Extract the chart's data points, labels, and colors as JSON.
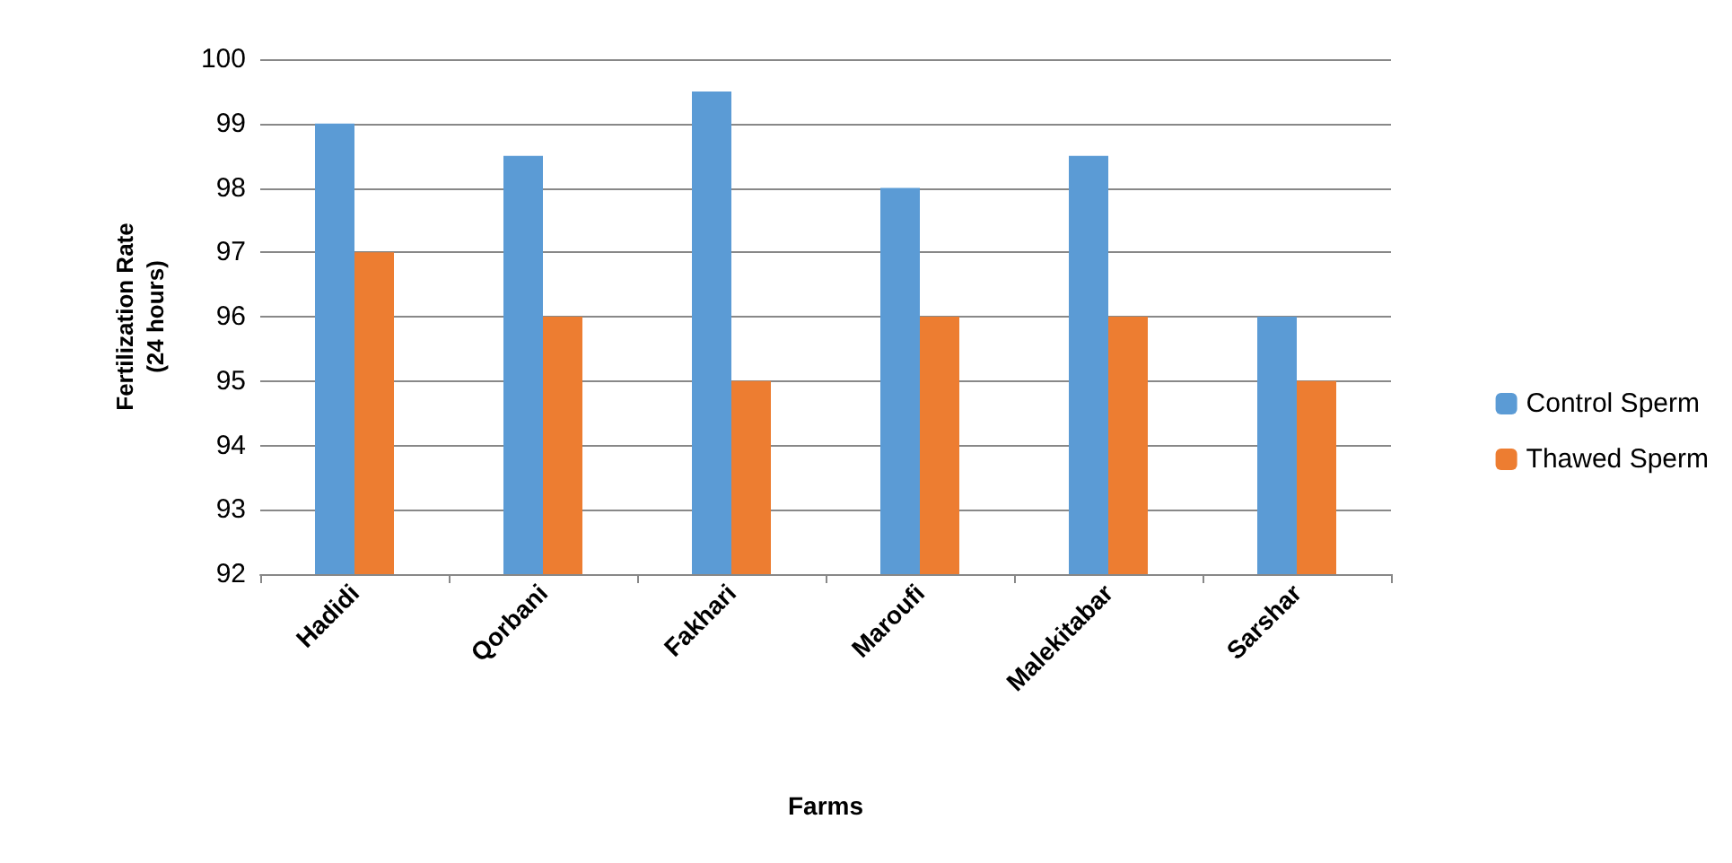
{
  "chart_data": {
    "type": "bar",
    "xlabel": "Farms",
    "ylabel": "Fertilization Rate\n(24 hours)",
    "categories": [
      "Hadidi",
      "Qorbani",
      "Fakhari",
      "Maroufi",
      "Malekitabar",
      "Sarshar"
    ],
    "series": [
      {
        "name": "Control Sperm",
        "color": "#5b9bd5",
        "values": [
          99,
          98.5,
          99.5,
          98,
          98.5,
          96
        ]
      },
      {
        "name": "Thawed Sperm",
        "color": "#ed7d31",
        "values": [
          97,
          96,
          95,
          96,
          96,
          95
        ]
      }
    ],
    "ylim": [
      92,
      100
    ],
    "yticks": [
      92,
      93,
      94,
      95,
      96,
      97,
      98,
      99,
      100
    ],
    "grid": "y",
    "legend": "right"
  }
}
